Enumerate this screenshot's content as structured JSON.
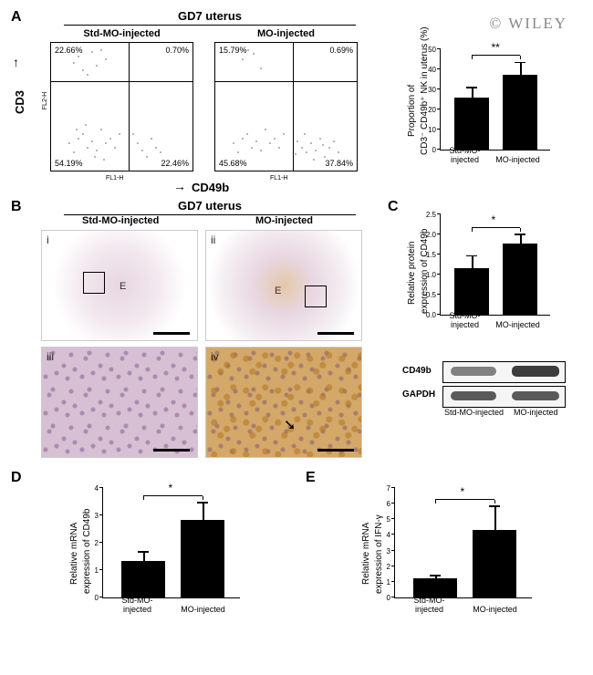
{
  "watermark": "© WILEY",
  "panelA": {
    "label": "A",
    "header": "GD7 uterus",
    "yaxis_mol": "CD3",
    "xaxis_mol": "CD49b",
    "left": {
      "title": "Std-MO-injected",
      "q_ul": "22.66%",
      "q_ur": "0.70%",
      "q_ll": "54.19%",
      "q_lr": "22.46%"
    },
    "right": {
      "title": "MO-injected",
      "q_ul": "15.79%",
      "q_ur": "0.69%",
      "q_ll": "45.68%",
      "q_lr": "37.84%"
    },
    "bar": {
      "ylabel1": "Proportion of",
      "ylabel2": "CD3⁻ CD49b⁺ NK in uterus (%)",
      "yticks": [
        "0",
        "10",
        "20",
        "30",
        "40",
        "50"
      ],
      "x1": "Std-MO-injected",
      "x2": "MO-injected",
      "v1": 26,
      "e1": 4.5,
      "v2": 37.5,
      "e2": 5.5,
      "ymax": 50,
      "sig": "**"
    }
  },
  "panelB": {
    "label": "B",
    "header": "GD7 uterus",
    "col1": "Std-MO-injected",
    "col2": "MO-injected",
    "roman": {
      "i": "i",
      "ii": "ii",
      "iii": "iii",
      "iv": "iv"
    },
    "E": "E"
  },
  "panelC": {
    "label": "C",
    "bar": {
      "ylabel1": "Relative protein",
      "ylabel2": "expression of CD49b",
      "yticks": [
        "0.0",
        "0.5",
        "1.0",
        "1.5",
        "2.0",
        "2.5"
      ],
      "x1": "Std-MO-injected",
      "x2": "MO-injected",
      "v1": 1.15,
      "e1": 0.3,
      "v2": 1.78,
      "e2": 0.2,
      "ymax": 2.5,
      "sig": "*"
    },
    "blot": {
      "r1": "CD49b",
      "r2": "GAPDH",
      "l1": "Std-MO-injected",
      "l2": "MO-injected"
    }
  },
  "panelD": {
    "label": "D",
    "bar": {
      "ylabel1": "Relative mRNA",
      "ylabel2": "expression of CD49b",
      "yticks": [
        "0",
        "1",
        "2",
        "3",
        "4"
      ],
      "x1": "Std-MO-injected",
      "x2": "MO-injected",
      "v1": 1.35,
      "e1": 0.3,
      "v2": 2.85,
      "e2": 0.6,
      "ymax": 4,
      "sig": "*"
    }
  },
  "panelE": {
    "label": "E",
    "bar": {
      "ylabel1": "Relative mRNA",
      "ylabel2": "expression of IFN-γ",
      "yticks": [
        "0",
        "1",
        "2",
        "3",
        "4",
        "5",
        "6",
        "7"
      ],
      "x1": "Std-MO-injected",
      "x2": "MO-injected",
      "v1": 1.2,
      "e1": 0.15,
      "v2": 4.3,
      "e2": 1.5,
      "ymax": 7,
      "sig": "*"
    }
  }
}
